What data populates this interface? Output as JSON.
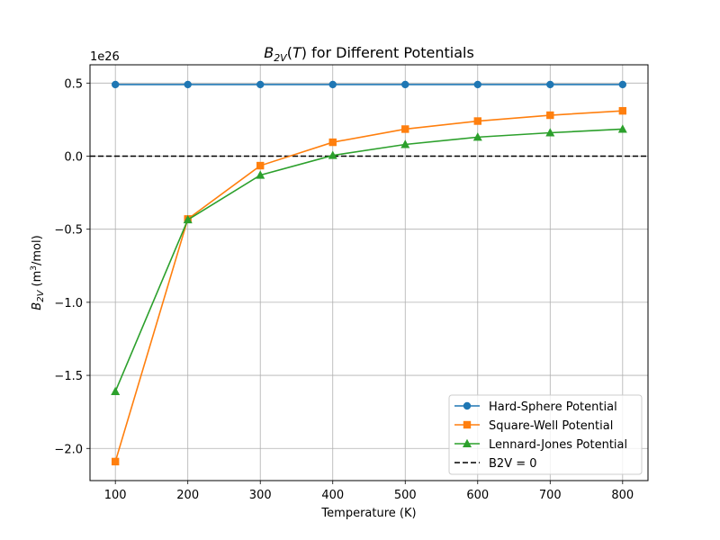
{
  "chart_data": {
    "type": "line",
    "title": {
      "pre": "B",
      "sub": "2V",
      "mid": "(",
      "ital": "T",
      "post": ") for Different Potentials"
    },
    "xlabel": "Temperature (K)",
    "ylabel": {
      "pre": "B",
      "sub": "2V",
      "unit_pre": " (m",
      "sup": "3",
      "unit_post": "/mol)"
    },
    "offset_text": "1e26",
    "x": [
      100,
      200,
      300,
      400,
      500,
      600,
      700,
      800
    ],
    "xticks": [
      100,
      200,
      300,
      400,
      500,
      600,
      700,
      800
    ],
    "xtick_labels": [
      "100",
      "200",
      "300",
      "400",
      "500",
      "600",
      "700",
      "800"
    ],
    "yticks": [
      0.5,
      0.0,
      -0.5,
      -1.0,
      -1.5,
      -2.0
    ],
    "ytick_labels": [
      "0.5",
      "0.0",
      "−0.5",
      "−1.0",
      "−1.5",
      "−2.0"
    ],
    "xlim": [
      65,
      835
    ],
    "ylim": [
      -2.22,
      0.625
    ],
    "y_scale": "×1e26",
    "grid": true,
    "legend_position": "lower right",
    "series": [
      {
        "name": "Hard-Sphere Potential",
        "color": "#1f77b4",
        "marker": "circle",
        "values": [
          0.49,
          0.49,
          0.49,
          0.49,
          0.49,
          0.49,
          0.49,
          0.49
        ]
      },
      {
        "name": "Square-Well Potential",
        "color": "#ff7f0e",
        "marker": "square",
        "values": [
          -2.09,
          -0.43,
          -0.065,
          0.095,
          0.185,
          0.24,
          0.28,
          0.31
        ]
      },
      {
        "name": "Lennard-Jones Potential",
        "color": "#2ca02c",
        "marker": "triangle",
        "values": [
          -1.61,
          -0.435,
          -0.13,
          0.005,
          0.08,
          0.13,
          0.16,
          0.185
        ]
      }
    ],
    "reference_line": {
      "name": "B2V = 0",
      "value": 0,
      "color": "#000000",
      "style": "dashed"
    }
  }
}
